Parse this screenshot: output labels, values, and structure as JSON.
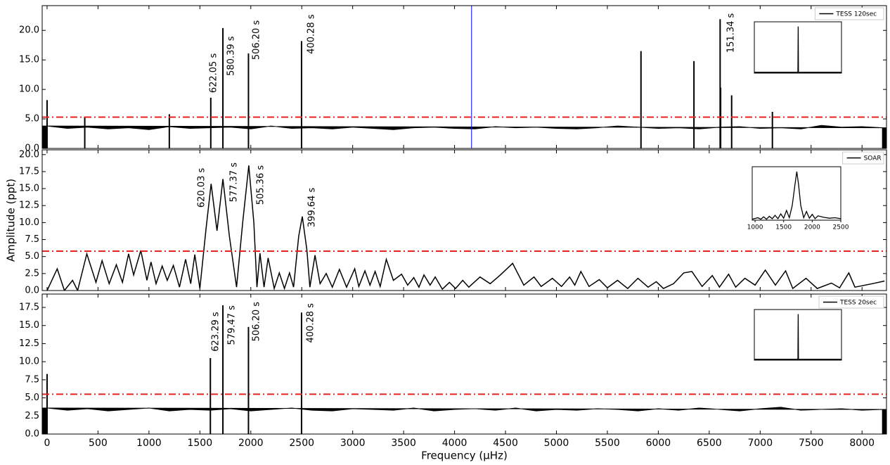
{
  "chart_data": [
    {
      "type": "line",
      "legend_corner": "upper right",
      "ylim": [
        0,
        24.2
      ],
      "yticks": [
        {
          "value": 0,
          "label": "0.0"
        },
        {
          "value": 5,
          "label": "5.0"
        },
        {
          "value": 10,
          "label": "10.0"
        },
        {
          "value": 15,
          "label": "15.0"
        },
        {
          "value": 20,
          "label": "20.0"
        }
      ],
      "threshold": 5.3,
      "threshold_color": "#e8231f",
      "vline": 4167,
      "vline_color": "#0000ff",
      "series": [
        {
          "name": "TESS 120sec",
          "color": "#000000",
          "style": "stem",
          "x": [
            0,
            370,
            1200,
            1607,
            1726,
            1977,
            2498,
            5830,
            6350,
            6607,
            6612,
            6720,
            7120
          ],
          "values": [
            8.2,
            5.4,
            5.8,
            8.6,
            20.4,
            16.1,
            18.2,
            16.5,
            14.8,
            21.9,
            10.3,
            9.0,
            6.2
          ]
        },
        {
          "color": "#000000",
          "style": "area",
          "x": [
            0,
            200,
            400,
            600,
            800,
            1000,
            1200,
            1400,
            1600,
            1800,
            2000,
            2200,
            2400,
            2600,
            2800,
            3000,
            3200,
            3400,
            3600,
            3800,
            4000,
            4200,
            4400,
            4600,
            4800,
            5000,
            5200,
            5400,
            5600,
            5800,
            6000,
            6200,
            6400,
            6600,
            6800,
            7000,
            7200,
            7400,
            7600,
            7800,
            8000,
            8200
          ],
          "values": [
            3.8,
            3.4,
            3.6,
            3.3,
            3.5,
            3.2,
            3.7,
            3.4,
            3.5,
            3.6,
            3.3,
            3.8,
            3.4,
            3.5,
            3.3,
            3.6,
            3.4,
            3.2,
            3.5,
            3.6,
            3.4,
            3.3,
            3.7,
            3.5,
            3.6,
            3.4,
            3.3,
            3.5,
            3.8,
            3.6,
            3.4,
            3.5,
            3.3,
            3.6,
            3.7,
            3.4,
            3.5,
            3.3,
            3.9,
            3.6,
            3.7,
            3.5
          ]
        }
      ],
      "annotations": [
        {
          "text": "622.05 s",
          "x": 1636,
          "y": 9.4
        },
        {
          "text": "580.39 s",
          "x": 1808,
          "y": 12.3
        },
        {
          "text": "506.20 s",
          "x": 2057,
          "y": 15.0
        },
        {
          "text": "400.28 s",
          "x": 2595,
          "y": 16.0
        },
        {
          "text": "151.34 s",
          "x": 6715,
          "y": 16.2
        }
      ],
      "inset": {
        "xlim": [
          950,
          2500
        ],
        "ylim": [
          0,
          1.1
        ],
        "x": [
          950,
          1725,
          1730,
          1735,
          2500
        ],
        "values": [
          0.02,
          0.02,
          1.0,
          0.02,
          0.02
        ]
      }
    },
    {
      "type": "line",
      "legend_corner": "upper right",
      "ylabel": "Amplitude (ppt)",
      "ylim": [
        0,
        20.7
      ],
      "yticks": [
        {
          "value": 0,
          "label": "0.0"
        },
        {
          "value": 2.5,
          "label": "2.5"
        },
        {
          "value": 5,
          "label": "5.0"
        },
        {
          "value": 7.5,
          "label": "7.5"
        },
        {
          "value": 10,
          "label": "10.0"
        },
        {
          "value": 12.5,
          "label": "12.5"
        },
        {
          "value": 15,
          "label": "15.0"
        },
        {
          "value": 17.5,
          "label": "17.5"
        },
        {
          "value": 20,
          "label": "20.0"
        }
      ],
      "threshold": 5.8,
      "threshold_color": "#e8231f",
      "series": [
        {
          "name": "SOAR",
          "color": "#000000",
          "style": "line",
          "x": [
            0,
            100,
            170,
            250,
            300,
            390,
            480,
            540,
            610,
            680,
            740,
            800,
            850,
            920,
            980,
            1020,
            1070,
            1130,
            1180,
            1240,
            1300,
            1360,
            1410,
            1450,
            1500,
            1560,
            1610,
            1668,
            1726,
            1790,
            1860,
            1920,
            1980,
            2030,
            2060,
            2090,
            2130,
            2170,
            2230,
            2280,
            2330,
            2380,
            2420,
            2470,
            2505,
            2550,
            2580,
            2630,
            2680,
            2740,
            2800,
            2870,
            2940,
            3020,
            3060,
            3120,
            3170,
            3220,
            3270,
            3330,
            3400,
            3480,
            3540,
            3600,
            3650,
            3700,
            3760,
            3810,
            3880,
            3950,
            4010,
            4080,
            4140,
            4250,
            4350,
            4450,
            4570,
            4680,
            4780,
            4850,
            4960,
            5050,
            5130,
            5180,
            5240,
            5320,
            5420,
            5500,
            5600,
            5700,
            5800,
            5900,
            5980,
            6050,
            6150,
            6250,
            6330,
            6430,
            6530,
            6600,
            6690,
            6760,
            6850,
            6950,
            7050,
            7150,
            7250,
            7320,
            7450,
            7560,
            7700,
            7780,
            7870,
            7930,
            8100,
            8220
          ],
          "values": [
            0,
            3.2,
            0,
            1.5,
            0,
            5.4,
            1.2,
            4.4,
            1.0,
            3.8,
            1.2,
            5.4,
            2.3,
            5.9,
            1.5,
            4.2,
            1.0,
            3.6,
            1.5,
            3.7,
            0.5,
            4.6,
            1.0,
            5.3,
            0.3,
            9,
            15.7,
            8.8,
            16.4,
            8,
            0.5,
            10,
            18.4,
            10,
            0.5,
            5.5,
            0.5,
            4.8,
            0.3,
            2.6,
            0.3,
            2.6,
            0.5,
            8,
            10.9,
            6,
            0.5,
            5.2,
            1.0,
            2.5,
            0.5,
            3.1,
            0.5,
            3.2,
            0.6,
            2.9,
            0.8,
            2.8,
            0.6,
            4.6,
            1.5,
            2.4,
            0.8,
            1.9,
            0.5,
            2.3,
            0.8,
            2.0,
            0.2,
            1.2,
            0.3,
            1.5,
            0.5,
            2.0,
            1.0,
            2.3,
            4.0,
            0.8,
            2.0,
            0.6,
            1.8,
            0.6,
            2.0,
            0.8,
            2.8,
            0.6,
            1.6,
            0.4,
            1.5,
            0.3,
            1.8,
            0.5,
            1.3,
            0.3,
            1.0,
            2.6,
            2.8,
            0.6,
            2.2,
            0.5,
            2.4,
            0.5,
            1.8,
            0.8,
            3.0,
            0.8,
            2.9,
            0.3,
            1.8,
            0.3,
            1.1,
            0.4,
            2.6,
            0.5,
            1.0,
            1.4
          ]
        }
      ],
      "annotations": [
        {
          "text": "620.03 s",
          "x": 1518,
          "y": 12.2
        },
        {
          "text": "577.37 s",
          "x": 1836,
          "y": 13.0
        },
        {
          "text": "505.36 s",
          "x": 2098,
          "y": 12.6
        },
        {
          "text": "399.64 s",
          "x": 2602,
          "y": 9.3
        }
      ],
      "inset": {
        "xlim": [
          950,
          2500
        ],
        "ylim": [
          0,
          1.1
        ],
        "xticks": [
          1000,
          1500,
          2000,
          2500
        ],
        "x": [
          950,
          1050,
          1100,
          1150,
          1200,
          1250,
          1300,
          1350,
          1400,
          1450,
          1500,
          1550,
          1600,
          1650,
          1700,
          1730,
          1760,
          1800,
          1850,
          1900,
          1950,
          2000,
          2050,
          2100,
          2200,
          2300,
          2400,
          2500
        ],
        "values": [
          0.02,
          0.05,
          0.02,
          0.07,
          0.02,
          0.08,
          0.03,
          0.1,
          0.03,
          0.13,
          0.04,
          0.2,
          0.05,
          0.3,
          0.75,
          1.0,
          0.75,
          0.3,
          0.05,
          0.18,
          0.04,
          0.12,
          0.03,
          0.09,
          0.06,
          0.04,
          0.05,
          0.03
        ]
      }
    },
    {
      "type": "line",
      "legend_corner": "upper right",
      "xlabel": "Frequency (μHz)",
      "xlim": [
        -48,
        8240
      ],
      "xticks": [
        0,
        500,
        1000,
        1500,
        2000,
        2500,
        3000,
        3500,
        4000,
        4500,
        5000,
        5500,
        6000,
        6500,
        7000,
        7500,
        8000
      ],
      "ylim": [
        0,
        19.35
      ],
      "yticks": [
        {
          "value": 0,
          "label": "0.0"
        },
        {
          "value": 2.5,
          "label": "2.5"
        },
        {
          "value": 5,
          "label": "5.0"
        },
        {
          "value": 7.5,
          "label": "7.5"
        },
        {
          "value": 10,
          "label": "10.0"
        },
        {
          "value": 12.5,
          "label": "12.5"
        },
        {
          "value": 15,
          "label": "15.0"
        },
        {
          "value": 17.5,
          "label": "17.5"
        }
      ],
      "threshold": 5.5,
      "threshold_color": "#e8231f",
      "series": [
        {
          "name": "TESS 20sec",
          "color": "#000000",
          "style": "stem",
          "x": [
            0,
            1603,
            1726,
            1977,
            2498
          ],
          "values": [
            8.3,
            10.5,
            17.8,
            14.8,
            16.8
          ]
        },
        {
          "color": "#000000",
          "style": "area",
          "x": [
            0,
            200,
            400,
            600,
            800,
            1000,
            1200,
            1400,
            1600,
            1800,
            2000,
            2200,
            2400,
            2600,
            2800,
            3000,
            3200,
            3400,
            3600,
            3800,
            4000,
            4200,
            4400,
            4600,
            4800,
            5000,
            5200,
            5400,
            5600,
            5800,
            6000,
            6200,
            6400,
            6600,
            6800,
            7000,
            7200,
            7400,
            7600,
            7800,
            8000,
            8200
          ],
          "values": [
            3.6,
            3.3,
            3.5,
            3.2,
            3.4,
            3.6,
            3.2,
            3.4,
            3.3,
            3.5,
            3.2,
            3.4,
            3.6,
            3.3,
            3.2,
            3.5,
            3.4,
            3.3,
            3.6,
            3.2,
            3.4,
            3.5,
            3.3,
            3.6,
            3.2,
            3.4,
            3.3,
            3.5,
            3.4,
            3.2,
            3.5,
            3.3,
            3.6,
            3.4,
            3.2,
            3.5,
            3.7,
            3.3,
            3.4,
            3.5,
            3.3,
            3.4
          ]
        }
      ],
      "annotations": [
        {
          "text": "623.29 s",
          "x": 1656,
          "y": 11.4
        },
        {
          "text": "579.47 s",
          "x": 1815,
          "y": 12.3
        },
        {
          "text": "506.20 s",
          "x": 2057,
          "y": 12.8
        },
        {
          "text": "400.28 s",
          "x": 2588,
          "y": 12.6
        }
      ],
      "inset": {
        "xlim": [
          950,
          2500
        ],
        "ylim": [
          0,
          1.1
        ],
        "x": [
          950,
          1725,
          1730,
          1735,
          2500
        ],
        "values": [
          0.02,
          0.02,
          1.0,
          0.02,
          0.02
        ]
      }
    }
  ]
}
